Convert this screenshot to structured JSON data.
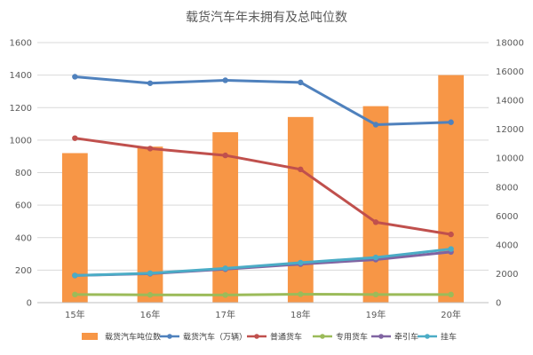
{
  "chart_data": {
    "type": "bar",
    "title": "载货汽车年末拥有及总吨位数",
    "categories": [
      "15年",
      "16年",
      "17年",
      "18年",
      "19年",
      "20年"
    ],
    "left_axis": {
      "ylim": [
        0,
        1600
      ],
      "ticks": [
        0,
        200,
        400,
        600,
        800,
        1000,
        1200,
        1400,
        1600
      ]
    },
    "right_axis": {
      "ylim": [
        0,
        18000
      ],
      "ticks": [
        0,
        2000,
        4000,
        6000,
        8000,
        10000,
        12000,
        14000,
        16000,
        18000
      ]
    },
    "grid": true,
    "legend_position": "bottom",
    "series": [
      {
        "name": "载货汽车吨位数",
        "type": "bar",
        "axis": "right",
        "color": "#F79646",
        "values": [
          10350,
          10800,
          11800,
          12850,
          13600,
          15750
        ]
      },
      {
        "name": "载货汽车（万辆）",
        "type": "line",
        "axis": "left",
        "color": "#4F81BD",
        "values": [
          1390,
          1350,
          1368,
          1355,
          1095,
          1110
        ]
      },
      {
        "name": "普通货车",
        "type": "line",
        "axis": "left",
        "color": "#C0504D",
        "values": [
          1012,
          948,
          906,
          820,
          495,
          420
        ]
      },
      {
        "name": "专用货车",
        "type": "line",
        "axis": "left",
        "color": "#9BBB59",
        "values": [
          50,
          48,
          47,
          52,
          50,
          50
        ]
      },
      {
        "name": "牵引车",
        "type": "line",
        "axis": "left",
        "color": "#8064A2",
        "values": [
          167,
          178,
          206,
          237,
          265,
          312
        ]
      },
      {
        "name": "挂车",
        "type": "line",
        "axis": "left",
        "color": "#4BACC6",
        "values": [
          167,
          181,
          211,
          246,
          278,
          330
        ]
      }
    ]
  }
}
